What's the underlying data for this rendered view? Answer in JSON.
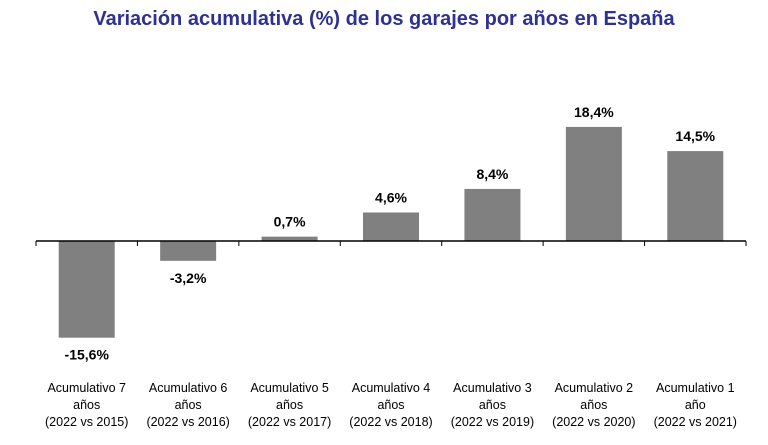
{
  "chart_data": {
    "type": "bar",
    "title": "Variación acumulativa (%) de los garajes por años en España",
    "categories": [
      [
        "Acumulativo 7",
        "años",
        "(2022 vs 2015)"
      ],
      [
        "Acumulativo 6",
        "años",
        "(2022 vs 2016)"
      ],
      [
        "Acumulativo 5",
        "años",
        "(2022 vs 2017)"
      ],
      [
        "Acumulativo 4",
        "años",
        "(2022 vs 2018)"
      ],
      [
        "Acumulativo 3",
        "años",
        "(2022 vs 2019)"
      ],
      [
        "Acumulativo 2",
        "años",
        "(2022 vs 2020)"
      ],
      [
        "Acumulativo 1",
        "año",
        "(2022 vs 2021)"
      ]
    ],
    "values": [
      -15.6,
      -3.2,
      0.7,
      4.6,
      8.4,
      18.4,
      14.5
    ],
    "value_labels": [
      "-15,6%",
      "-3,2%",
      "0,7%",
      "4,6%",
      "8,4%",
      "18,4%",
      "14,5%"
    ],
    "xlabel": "",
    "ylabel": "",
    "grid": false,
    "legend": "none",
    "bar_color": "#808080",
    "title_color": "#2e3192"
  }
}
